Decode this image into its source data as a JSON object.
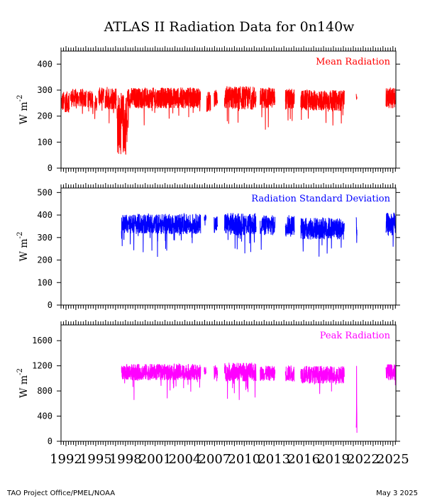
{
  "chart_data": {
    "title": "ATLAS II Radiation Data for 0n140w",
    "x_axis": {
      "tick_labels": [
        "1992",
        "1995",
        "1998",
        "2001",
        "2004",
        "2007",
        "2010",
        "2013",
        "2016",
        "2019",
        "2022",
        "2025"
      ],
      "range": [
        1991.5,
        2025.3
      ]
    },
    "panels": [
      {
        "type": "line",
        "name": "mean",
        "legend": "Mean Radiation",
        "ylabel": "W m",
        "ylabel_sup": "-2",
        "color": "#ff0000",
        "ylim": [
          0,
          450
        ],
        "yticks": [
          0,
          100,
          200,
          300,
          400
        ],
        "segments": [
          {
            "start": 1991.55,
            "end": 1992.35,
            "base": 255,
            "amp": 40
          },
          {
            "start": 1992.45,
            "end": 1993.3,
            "base": 270,
            "amp": 35
          },
          {
            "start": 1993.35,
            "end": 1994.05,
            "base": 270,
            "amp": 35
          },
          {
            "start": 1994.2,
            "end": 1994.75,
            "base": 265,
            "amp": 35
          },
          {
            "start": 1994.9,
            "end": 1995.15,
            "base": 250,
            "amp": 30
          },
          {
            "start": 1995.3,
            "end": 1995.85,
            "base": 275,
            "amp": 35
          },
          {
            "start": 1995.95,
            "end": 1997.1,
            "base": 270,
            "amp": 45
          },
          {
            "start": 1997.15,
            "end": 1998.2,
            "base": 170,
            "amp": 120
          },
          {
            "start": 1998.2,
            "end": 2005.6,
            "base": 270,
            "amp": 40
          },
          {
            "start": 2006.2,
            "end": 2006.6,
            "base": 255,
            "amp": 40
          },
          {
            "start": 2006.95,
            "end": 2007.3,
            "base": 270,
            "amp": 35
          },
          {
            "start": 2008.0,
            "end": 2011.2,
            "base": 270,
            "amp": 45
          },
          {
            "start": 2011.6,
            "end": 2013.1,
            "base": 270,
            "amp": 40
          },
          {
            "start": 2014.15,
            "end": 2015.05,
            "base": 265,
            "amp": 40
          },
          {
            "start": 2015.7,
            "end": 2020.1,
            "base": 260,
            "amp": 40
          },
          {
            "start": 2021.3,
            "end": 2021.38,
            "base": 285,
            "amp": 20
          },
          {
            "start": 2024.3,
            "end": 2025.25,
            "base": 270,
            "amp": 40
          }
        ]
      },
      {
        "type": "line",
        "name": "stddev",
        "legend": "Radiation Standard Deviation",
        "ylabel": "W m",
        "ylabel_sup": "-2",
        "color": "#0000ff",
        "ylim": [
          0,
          520
        ],
        "yticks": [
          0,
          100,
          200,
          300,
          400,
          500
        ],
        "segments": [
          {
            "start": 1997.6,
            "end": 2005.6,
            "base": 360,
            "amp": 45
          },
          {
            "start": 2005.95,
            "end": 2006.15,
            "base": 390,
            "amp": 15
          },
          {
            "start": 2006.95,
            "end": 2007.3,
            "base": 360,
            "amp": 40
          },
          {
            "start": 2008.0,
            "end": 2011.2,
            "base": 360,
            "amp": 50
          },
          {
            "start": 2011.6,
            "end": 2013.1,
            "base": 355,
            "amp": 45
          },
          {
            "start": 2014.15,
            "end": 2015.05,
            "base": 355,
            "amp": 45
          },
          {
            "start": 2015.7,
            "end": 2020.1,
            "base": 340,
            "amp": 50
          },
          {
            "start": 2021.3,
            "end": 2021.38,
            "base": 330,
            "amp": 60
          },
          {
            "start": 2024.3,
            "end": 2025.25,
            "base": 360,
            "amp": 50
          }
        ]
      },
      {
        "type": "line",
        "name": "peak",
        "legend": "Peak Radiation",
        "ylabel": "W m",
        "ylabel_sup": "-2",
        "color": "#ff00ff",
        "ylim": [
          0,
          1850
        ],
        "yticks": [
          0,
          400,
          800,
          1200,
          1600
        ],
        "segments": [
          {
            "start": 1997.6,
            "end": 2005.6,
            "base": 1100,
            "amp": 130
          },
          {
            "start": 2005.95,
            "end": 2006.15,
            "base": 1120,
            "amp": 60
          },
          {
            "start": 2006.95,
            "end": 2007.3,
            "base": 1100,
            "amp": 120
          },
          {
            "start": 2008.0,
            "end": 2011.2,
            "base": 1100,
            "amp": 150
          },
          {
            "start": 2011.6,
            "end": 2013.1,
            "base": 1080,
            "amp": 120
          },
          {
            "start": 2014.15,
            "end": 2015.05,
            "base": 1080,
            "amp": 130
          },
          {
            "start": 2015.7,
            "end": 2020.1,
            "base": 1060,
            "amp": 140
          },
          {
            "start": 2021.3,
            "end": 2021.38,
            "base": 650,
            "amp": 550
          },
          {
            "start": 2024.3,
            "end": 2025.25,
            "base": 1100,
            "amp": 130
          }
        ]
      }
    ]
  },
  "footer": {
    "left": "TAO Project Office/PMEL/NOAA",
    "right": "May  3 2025"
  }
}
